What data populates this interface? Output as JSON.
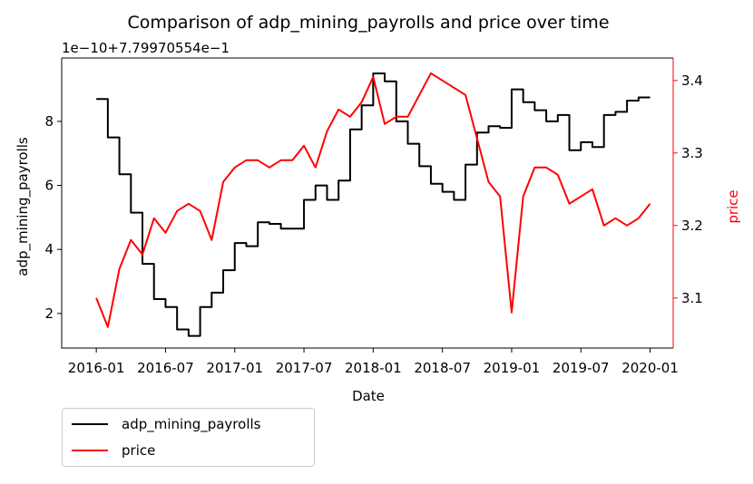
{
  "chart_data": {
    "type": "line",
    "title": "Comparison of adp_mining_payrolls and price over time",
    "x_label": "Date",
    "y_label": "adp_mining_payrolls",
    "y2_label": "price",
    "y_offset_label": "1e−10+7.79970554e−1",
    "x": [
      "2016-01",
      "2016-02",
      "2016-03",
      "2016-04",
      "2016-05",
      "2016-06",
      "2016-07",
      "2016-08",
      "2016-09",
      "2016-10",
      "2016-11",
      "2016-12",
      "2017-01",
      "2017-02",
      "2017-03",
      "2017-04",
      "2017-05",
      "2017-06",
      "2017-07",
      "2017-08",
      "2017-09",
      "2017-10",
      "2017-11",
      "2017-12",
      "2018-01",
      "2018-02",
      "2018-03",
      "2018-04",
      "2018-05",
      "2018-06",
      "2018-07",
      "2018-08",
      "2018-09",
      "2018-10",
      "2018-11",
      "2018-12",
      "2019-01",
      "2019-02",
      "2019-03",
      "2019-04",
      "2019-05",
      "2019-06",
      "2019-07",
      "2019-08",
      "2019-09",
      "2019-10",
      "2019-11",
      "2019-12",
      "2020-01"
    ],
    "xlim": [
      "2015-10",
      "2020-03"
    ],
    "xticks": [
      "2016-01",
      "2016-07",
      "2017-01",
      "2017-07",
      "2018-01",
      "2018-07",
      "2019-01",
      "2019-07",
      "2020-01"
    ],
    "ylim": [
      0.92,
      9.98
    ],
    "yticks": [
      2,
      4,
      6,
      8
    ],
    "y2lim": [
      3.031,
      3.431
    ],
    "y2ticks": [
      3.1,
      3.2,
      3.3,
      3.4
    ],
    "legend": "lower left outside",
    "series": [
      {
        "name": "adp_mining_payrolls",
        "color": "#000000",
        "step": true,
        "values": [
          8.7,
          7.5,
          6.35,
          5.15,
          3.55,
          2.45,
          2.2,
          1.5,
          1.3,
          2.2,
          2.65,
          3.35,
          4.2,
          4.1,
          4.85,
          4.8,
          4.65,
          4.65,
          5.55,
          6.0,
          5.55,
          6.15,
          7.75,
          8.5,
          9.5,
          9.25,
          8.0,
          7.3,
          6.6,
          6.05,
          5.8,
          5.55,
          6.65,
          7.65,
          7.85,
          7.8,
          9.0,
          8.6,
          8.35,
          8.0,
          8.2,
          7.1,
          7.35,
          7.2,
          8.2,
          8.3,
          8.65,
          8.75,
          8.75
        ]
      },
      {
        "name": "price",
        "color": "#ff0000",
        "axis": "y2",
        "values": [
          3.1,
          3.06,
          3.14,
          3.18,
          3.16,
          3.21,
          3.19,
          3.22,
          3.23,
          3.22,
          3.18,
          3.26,
          3.28,
          3.29,
          3.29,
          3.28,
          3.29,
          3.29,
          3.31,
          3.28,
          3.33,
          3.36,
          3.35,
          3.37,
          3.405,
          3.34,
          3.35,
          3.35,
          3.38,
          3.41,
          3.4,
          3.39,
          3.38,
          3.32,
          3.26,
          3.24,
          3.08,
          3.24,
          3.28,
          3.28,
          3.27,
          3.23,
          3.24,
          3.25,
          3.2,
          3.21,
          3.2,
          3.21,
          3.23
        ]
      }
    ]
  }
}
